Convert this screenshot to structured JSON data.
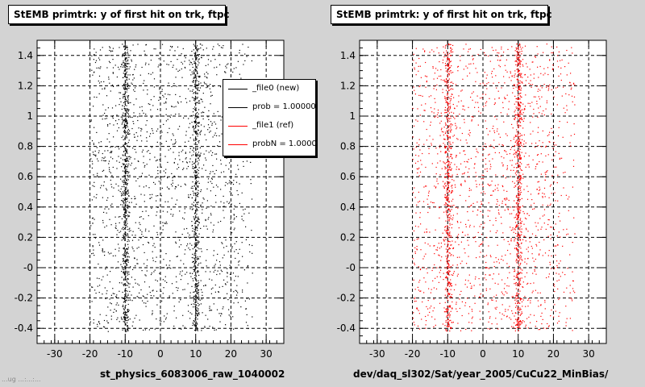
{
  "chart_data": [
    {
      "type": "scatter",
      "title": "StEMB primtrk: y of first hit on trk, ftpc",
      "xlabel": "st_physics_6083006_raw_1040002",
      "ylabel": "",
      "xlim": [
        -35,
        35
      ],
      "ylim": [
        -0.5,
        1.5
      ],
      "xticks": [
        -30,
        -20,
        -10,
        0,
        10,
        20,
        30
      ],
      "yticks": [
        -0.4,
        -0.2,
        0,
        0.2,
        0.4,
        0.6,
        0.8,
        1,
        1.2,
        1.4
      ],
      "xtick_labels": [
        "-30",
        "-20",
        "-10",
        "0",
        "10",
        "20",
        "30"
      ],
      "ytick_labels": [
        "-0.4",
        "-0.2",
        "-0",
        "0.2",
        "0.4",
        "0.6",
        "0.8",
        "1",
        "1.2",
        "1.4"
      ],
      "grid": true,
      "point_color": "#000000",
      "x_band": [
        -20,
        22
      ],
      "dense_columns": [
        -10,
        10
      ],
      "legend": {
        "position": "top-right",
        "entries": [
          {
            "label": "_file0 (new)",
            "color": "#000000"
          },
          {
            "label": "prob = 1.000000",
            "color": "#000000"
          },
          {
            "label": "_file1 (ref)",
            "color": "#ff0000"
          },
          {
            "label": "probN = 1.000000",
            "color": "#ff0000"
          }
        ]
      }
    },
    {
      "type": "scatter",
      "title": "StEMB primtrk: y of first hit on trk, ftpc",
      "xlabel": "dev/daq_sl302/Sat/year_2005/CuCu22_MinBias/",
      "ylabel": "",
      "xlim": [
        -35,
        35
      ],
      "ylim": [
        -0.5,
        1.5
      ],
      "xticks": [
        -30,
        -20,
        -10,
        0,
        10,
        20,
        30
      ],
      "yticks": [
        -0.4,
        -0.2,
        0,
        0.2,
        0.4,
        0.6,
        0.8,
        1,
        1.2,
        1.4
      ],
      "xtick_labels": [
        "-30",
        "-20",
        "-10",
        "0",
        "10",
        "20",
        "30"
      ],
      "ytick_labels": [
        "-0.4",
        "-0.2",
        "-0",
        "0.2",
        "0.4",
        "0.6",
        "0.8",
        "1",
        "1.2",
        "1.4"
      ],
      "grid": true,
      "point_color": "#ff0000",
      "x_band": [
        -20,
        22
      ],
      "dense_columns": [
        -10,
        10
      ]
    }
  ],
  "footer": "...ug ...:...:..."
}
